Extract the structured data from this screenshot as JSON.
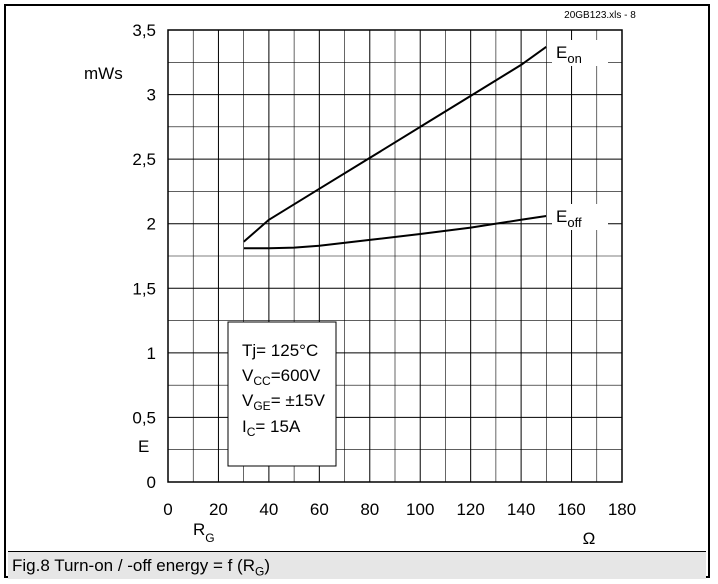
{
  "source_label": "20GB123.xls - 8",
  "caption": {
    "text": "Fig.8 Turn-on / -off energy = f (R",
    "subscript": "G",
    "suffix": ")"
  },
  "chart_data": {
    "type": "line",
    "title": "",
    "xlabel": "R",
    "xlabel_sub": "G",
    "xunit": "Ω",
    "ylabel": "E",
    "yunit": "mWs",
    "xlim": [
      0,
      180
    ],
    "ylim": [
      0,
      3.5
    ],
    "x_major_ticks": [
      0,
      20,
      40,
      60,
      80,
      100,
      120,
      140,
      160,
      180
    ],
    "x_tick_labels": [
      "0",
      "20",
      "40",
      "60",
      "80",
      "100",
      "120",
      "140",
      "160",
      "180"
    ],
    "y_major_ticks": [
      0,
      0.5,
      1,
      1.5,
      2,
      2.5,
      3,
      3.5
    ],
    "y_tick_labels": [
      "0",
      "0,5",
      "1",
      "1,5",
      "2",
      "2,5",
      "3",
      "3,5"
    ],
    "x_minor_step": 10,
    "y_minor_step": 0.25,
    "grid": true,
    "series": [
      {
        "name": "E",
        "name_sub": "on",
        "color": "#000000",
        "x": [
          30,
          40,
          60,
          80,
          100,
          120,
          140,
          150
        ],
        "y": [
          1.86,
          2.03,
          2.27,
          2.51,
          2.75,
          2.99,
          3.23,
          3.37
        ]
      },
      {
        "name": "E",
        "name_sub": "off",
        "color": "#000000",
        "x": [
          30,
          40,
          50,
          60,
          80,
          100,
          120,
          140,
          150
        ],
        "y": [
          1.81,
          1.81,
          1.815,
          1.83,
          1.875,
          1.92,
          1.97,
          2.03,
          2.06
        ]
      }
    ],
    "annotation_box": {
      "lines": [
        {
          "main": "Tj= 125°C",
          "sub": "",
          "rest": ""
        },
        {
          "main": "V",
          "sub": "CC",
          "rest": "=600V"
        },
        {
          "main": "V",
          "sub": "GE",
          "rest": "= ±15V"
        },
        {
          "main": "I",
          "sub": "C",
          "rest": "=  15A"
        }
      ]
    }
  }
}
